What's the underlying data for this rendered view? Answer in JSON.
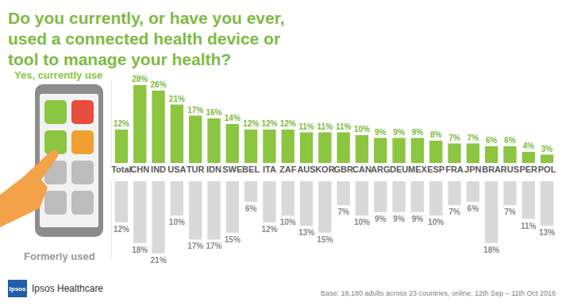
{
  "chart_data": [
    {
      "type": "bar",
      "title": "Do you currently, or have you ever, used a connected health device or tool to manage your health?",
      "categories": [
        "Total",
        "CHN",
        "IND",
        "USA",
        "TUR",
        "IDN",
        "SWE",
        "BEL",
        "ITA",
        "ZAF",
        "AUS",
        "KOR",
        "GBR",
        "CAN",
        "ARG",
        "DEU",
        "MEX",
        "ESP",
        "FRA",
        "JPN",
        "BRA",
        "RUS",
        "PER",
        "POL"
      ],
      "series": [
        {
          "name": "Yes, currently use",
          "color": "#8cc540",
          "values": [
            12,
            28,
            26,
            21,
            17,
            16,
            14,
            12,
            12,
            12,
            11,
            11,
            11,
            10,
            9,
            9,
            9,
            8,
            7,
            7,
            6,
            6,
            4,
            3
          ],
          "value_labels": [
            "12%",
            "28%",
            "26%",
            "21%",
            "17%",
            "16%",
            "14%",
            "12%",
            "12%",
            "12%",
            "11%",
            "11%",
            "11%",
            "10%",
            "9%",
            "9%",
            "9%",
            "8%",
            "7%",
            "7%",
            "6%",
            "6%",
            "4%",
            "3%"
          ]
        }
      ],
      "ylim": [
        0,
        30
      ],
      "data_labels": true,
      "tick_labels": "x",
      "annotations": [
        "Ipsos",
        "Ipsos Healthcare",
        "Base: 18,180 adults across 23 countries, online, 12th Sep – 11th Oct 2016"
      ]
    },
    {
      "type": "bar",
      "categories": [
        "Total",
        "CHN",
        "IND",
        "USA",
        "TUR",
        "IDN",
        "SWE",
        "BEL",
        "ITA",
        "ZAF",
        "AUS",
        "KOR",
        "GBR",
        "CAN",
        "ARG",
        "DEU",
        "MEX",
        "ESP",
        "FRA",
        "JPN",
        "BRA",
        "RUS",
        "PER",
        "POL"
      ],
      "series": [
        {
          "name": "Formerly used",
          "color": "#d9d9d9",
          "values": [
            12,
            18,
            21,
            10,
            17,
            17,
            15,
            6,
            12,
            10,
            13,
            15,
            7,
            10,
            9,
            9,
            9,
            10,
            7,
            6,
            18,
            7,
            11,
            13
          ],
          "value_labels": [
            "12%",
            "18%",
            "21%",
            "10%",
            "17%",
            "17%",
            "15%",
            "6%",
            "12%",
            "10%",
            "13%",
            "15%",
            "7%",
            "10%",
            "9%",
            "9%",
            "9%",
            "10%",
            "7%",
            "6%",
            "18%",
            "7%",
            "11%",
            "13%"
          ]
        }
      ],
      "ylim": [
        0,
        22
      ],
      "data_labels": true,
      "tick_labels": false
    }
  ]
}
